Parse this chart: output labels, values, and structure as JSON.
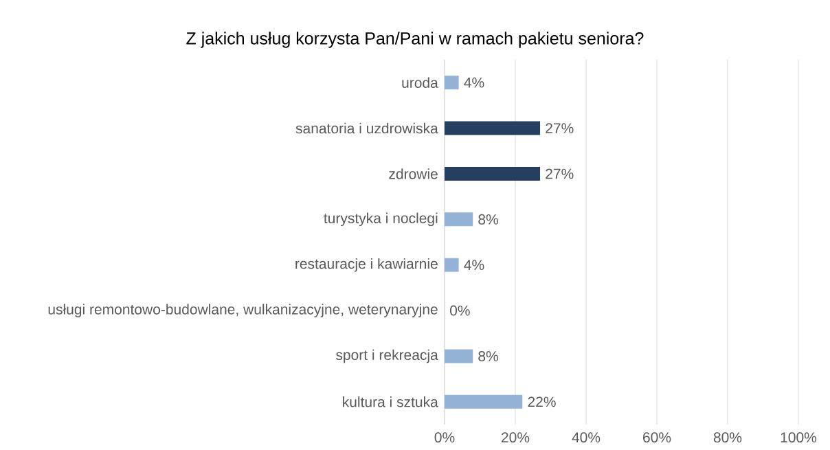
{
  "chart_data": {
    "type": "bar",
    "orientation": "horizontal",
    "title": "Z jakich usług korzysta Pan/Pani w ramach pakietu seniora?",
    "categories": [
      "uroda",
      "sanatoria i uzdrowiska",
      "zdrowie",
      "turystyka i noclegi",
      "restauracje i kawiarnie",
      "usługi remontowo-budowlane, wulkanizacyjne, weterynaryjne",
      "sport i rekreacja",
      "kultura i sztuka"
    ],
    "values": [
      4,
      27,
      27,
      8,
      4,
      0,
      8,
      22
    ],
    "value_labels": [
      "4%",
      "27%",
      "27%",
      "8%",
      "4%",
      "0%",
      "8%",
      "22%"
    ],
    "colors": [
      "#95b3d7",
      "#243f60",
      "#243f60",
      "#95b3d7",
      "#95b3d7",
      "#95b3d7",
      "#95b3d7",
      "#95b3d7"
    ],
    "xlim": [
      0,
      100
    ],
    "xticks": [
      {
        "value": 0,
        "label": "0%"
      },
      {
        "value": 20,
        "label": "20%"
      },
      {
        "value": 40,
        "label": "40%"
      },
      {
        "value": 60,
        "label": "60%"
      },
      {
        "value": 80,
        "label": "80%"
      },
      {
        "value": 100,
        "label": "100%"
      }
    ],
    "grid": "x"
  }
}
